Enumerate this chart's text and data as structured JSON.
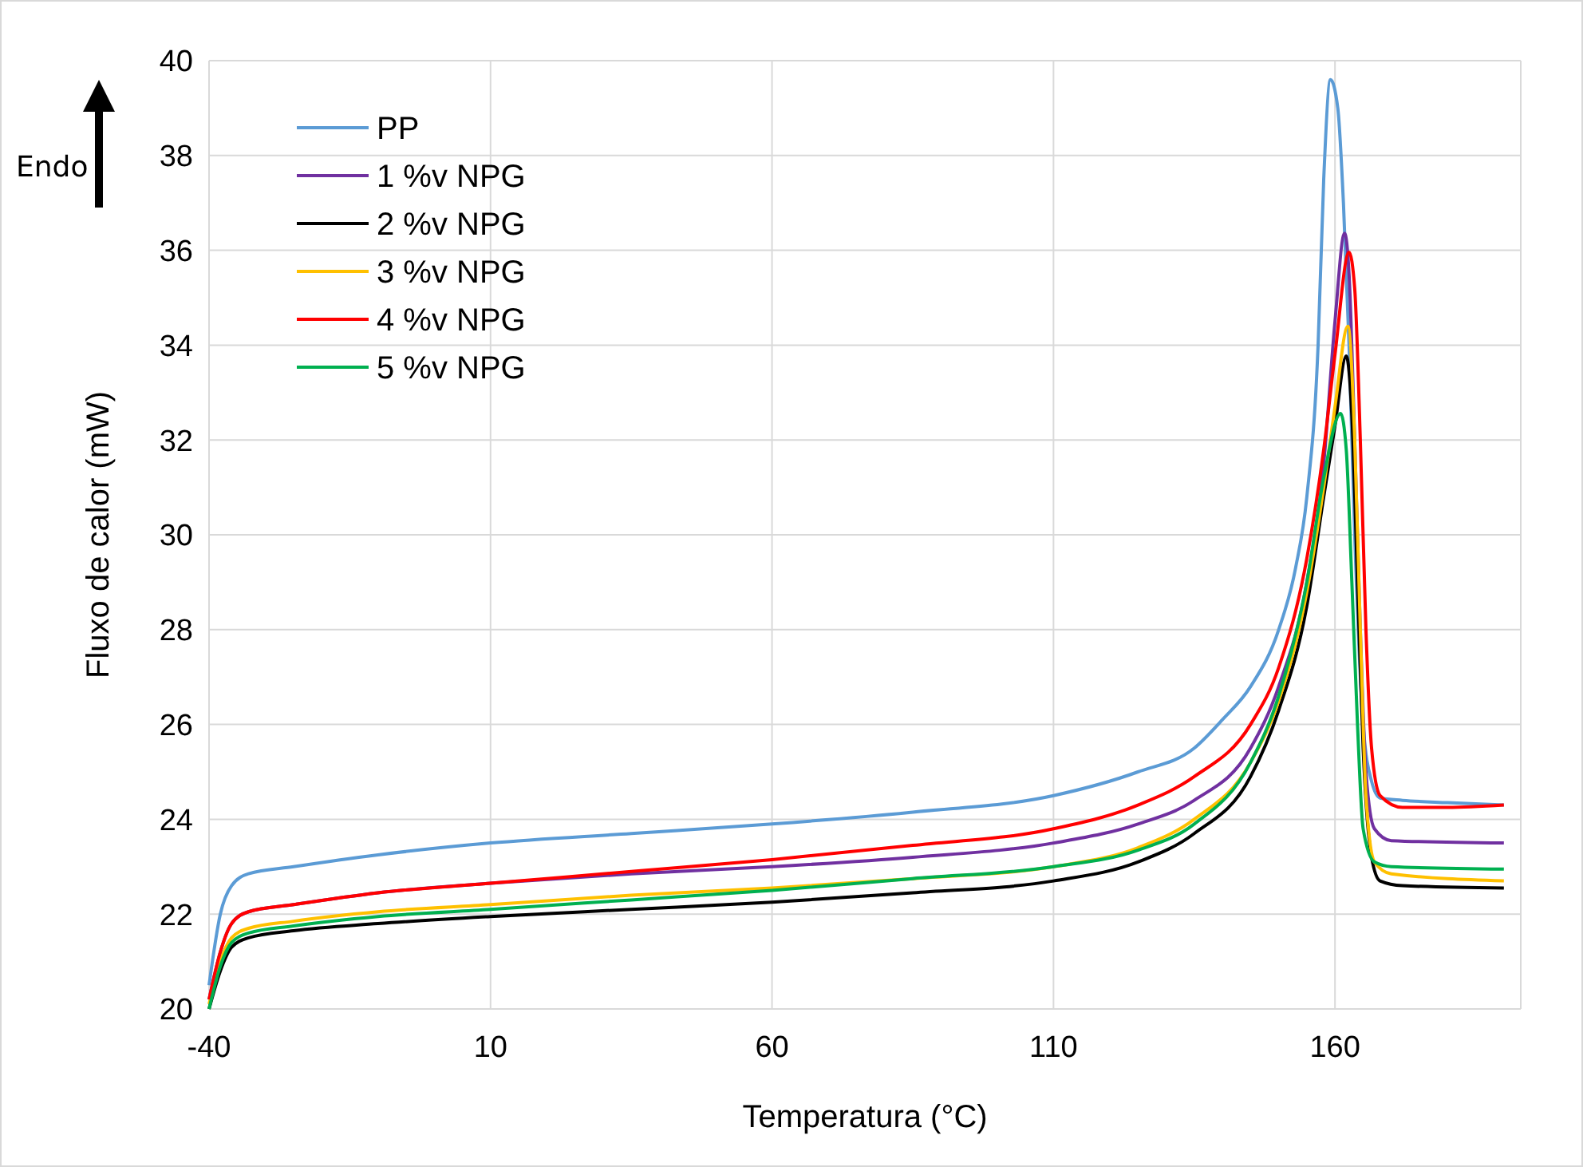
{
  "chart_data": {
    "type": "line",
    "xlabel": "Temperatura (°C)",
    "ylabel": "Fluxo de calor (mW)",
    "annotations": [
      "Endo"
    ],
    "xlim": [
      -40,
      193
    ],
    "xticks": [
      -40,
      10,
      60,
      110,
      160
    ],
    "ylim": [
      20,
      40
    ],
    "yticks": [
      20,
      22,
      24,
      26,
      28,
      30,
      32,
      34,
      36,
      38,
      40
    ],
    "grid": true,
    "legend": "top left",
    "marker": "none",
    "line_style": "solid",
    "series": [
      {
        "name": "PP",
        "color": "#5b9bd5",
        "x": [
          -40,
          -38,
          -36,
          -33,
          -25,
          -10,
          10,
          35,
          60,
          85,
          110,
          125,
          135,
          140,
          145,
          150,
          153,
          155,
          157,
          158,
          159.2,
          160.5,
          161.5,
          162.5,
          163.5,
          165,
          166.5,
          168,
          172,
          180,
          190
        ],
        "values": [
          20.5,
          22.0,
          22.6,
          22.85,
          23.0,
          23.25,
          23.5,
          23.7,
          23.9,
          24.15,
          24.5,
          25.0,
          25.5,
          26.1,
          26.8,
          28.0,
          29.3,
          30.8,
          34,
          37.5,
          39.6,
          39,
          37,
          34,
          30,
          26,
          24.8,
          24.45,
          24.4,
          24.35,
          24.3
        ]
      },
      {
        "name": "1 %v NPG",
        "color": "#7030a0",
        "x": [
          -40,
          -38,
          -36,
          -33,
          -25,
          -10,
          10,
          35,
          60,
          85,
          110,
          125,
          135,
          145,
          150,
          155,
          158,
          160,
          161.7,
          162.5,
          163.5,
          164.5,
          165.5,
          167,
          170,
          190
        ],
        "values": [
          20.2,
          21.2,
          21.8,
          22.05,
          22.2,
          22.45,
          22.65,
          22.85,
          23.0,
          23.2,
          23.5,
          23.9,
          24.4,
          25.5,
          26.8,
          29,
          31.5,
          34.5,
          36.36,
          35.5,
          32,
          28,
          25,
          23.8,
          23.55,
          23.5
        ]
      },
      {
        "name": "2 %v NPG",
        "color": "#000000",
        "x": [
          -40,
          -38,
          -36,
          -33,
          -25,
          -10,
          10,
          35,
          60,
          85,
          110,
          125,
          135,
          145,
          150,
          155,
          158,
          160,
          162,
          163,
          164,
          165,
          166.5,
          168,
          172,
          190
        ],
        "values": [
          20.0,
          20.8,
          21.3,
          21.5,
          21.65,
          21.8,
          21.95,
          22.1,
          22.25,
          22.45,
          22.7,
          23.1,
          23.7,
          24.9,
          26.3,
          28.5,
          30.8,
          32.3,
          33.77,
          32.5,
          29,
          25.5,
          23.2,
          22.7,
          22.6,
          22.55
        ]
      },
      {
        "name": "3 %v NPG",
        "color": "#ffc000",
        "x": [
          -40,
          -38,
          -36,
          -33,
          -25,
          -10,
          10,
          35,
          60,
          85,
          110,
          125,
          135,
          145,
          150,
          155,
          158,
          160,
          162.3,
          163.5,
          164.5,
          165.5,
          167,
          170,
          190
        ],
        "values": [
          20.1,
          21.0,
          21.5,
          21.7,
          21.85,
          22.05,
          22.2,
          22.4,
          22.55,
          22.75,
          23.0,
          23.4,
          24.0,
          25.2,
          26.5,
          28.8,
          31,
          32.7,
          34.4,
          32,
          28,
          24.5,
          23.1,
          22.85,
          22.7
        ]
      },
      {
        "name": "4 %v NPG",
        "color": "#ff0000",
        "x": [
          -40,
          -38,
          -36,
          -33,
          -25,
          -10,
          10,
          35,
          60,
          85,
          110,
          125,
          135,
          145,
          150,
          155,
          158,
          160,
          162.5,
          163.5,
          164.5,
          165.5,
          166.5,
          168,
          172,
          180,
          190
        ],
        "values": [
          20.2,
          21.2,
          21.8,
          22.05,
          22.2,
          22.45,
          22.65,
          22.9,
          23.15,
          23.45,
          23.8,
          24.3,
          24.9,
          26,
          27.2,
          29.5,
          31.8,
          33.8,
          35.96,
          35.2,
          32,
          28,
          25.5,
          24.5,
          24.25,
          24.25,
          24.3
        ]
      },
      {
        "name": "5 %v NPG",
        "color": "#00b050",
        "x": [
          -40,
          -38,
          -36,
          -33,
          -25,
          -10,
          10,
          35,
          60,
          85,
          110,
          125,
          135,
          145,
          150,
          155,
          158,
          161,
          162,
          163,
          164,
          165,
          167,
          170,
          190
        ],
        "values": [
          20.0,
          20.9,
          21.4,
          21.6,
          21.75,
          21.95,
          22.1,
          22.3,
          22.5,
          22.75,
          23.0,
          23.35,
          23.9,
          25.2,
          26.6,
          29,
          31.2,
          32.56,
          31.8,
          29,
          26,
          23.8,
          23.1,
          23.0,
          22.95
        ]
      }
    ]
  }
}
